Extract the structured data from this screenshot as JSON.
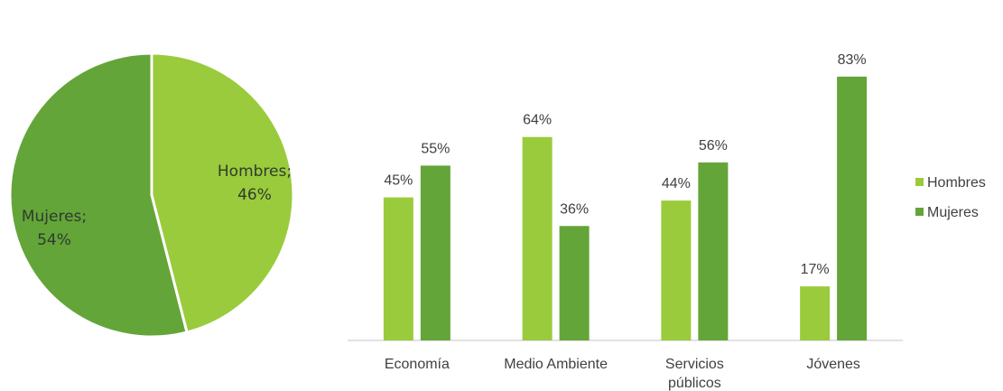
{
  "colors": {
    "hombres": "#9acb3c",
    "mujeres": "#63a539",
    "axis": "#d9d9d9",
    "text": "#404040"
  },
  "chart_data": [
    {
      "type": "pie",
      "slices": [
        {
          "label": "Hombres",
          "value": 46,
          "label_text": [
            "Hombres;",
            "46%"
          ]
        },
        {
          "label": "Mujeres",
          "value": 54,
          "label_text": [
            "Mujeres;",
            "54%"
          ]
        }
      ]
    },
    {
      "type": "bar",
      "categories": [
        "Economía",
        "Medio Ambiente",
        "Servicios públicos",
        "Jóvenes"
      ],
      "category_lines": [
        [
          "Economía"
        ],
        [
          "Medio Ambiente"
        ],
        [
          "Servicios",
          "públicos"
        ],
        [
          "Jóvenes"
        ]
      ],
      "series": [
        {
          "name": "Hombres",
          "values": [
            45,
            64,
            44,
            17
          ],
          "value_labels": [
            "45%",
            "64%",
            "44%",
            "17%"
          ]
        },
        {
          "name": "Mujeres",
          "values": [
            55,
            36,
            56,
            83
          ],
          "value_labels": [
            "55%",
            "36%",
            "56%",
            "83%"
          ]
        }
      ],
      "ylim": [
        0,
        100
      ],
      "grid": false,
      "legend": "right"
    }
  ]
}
